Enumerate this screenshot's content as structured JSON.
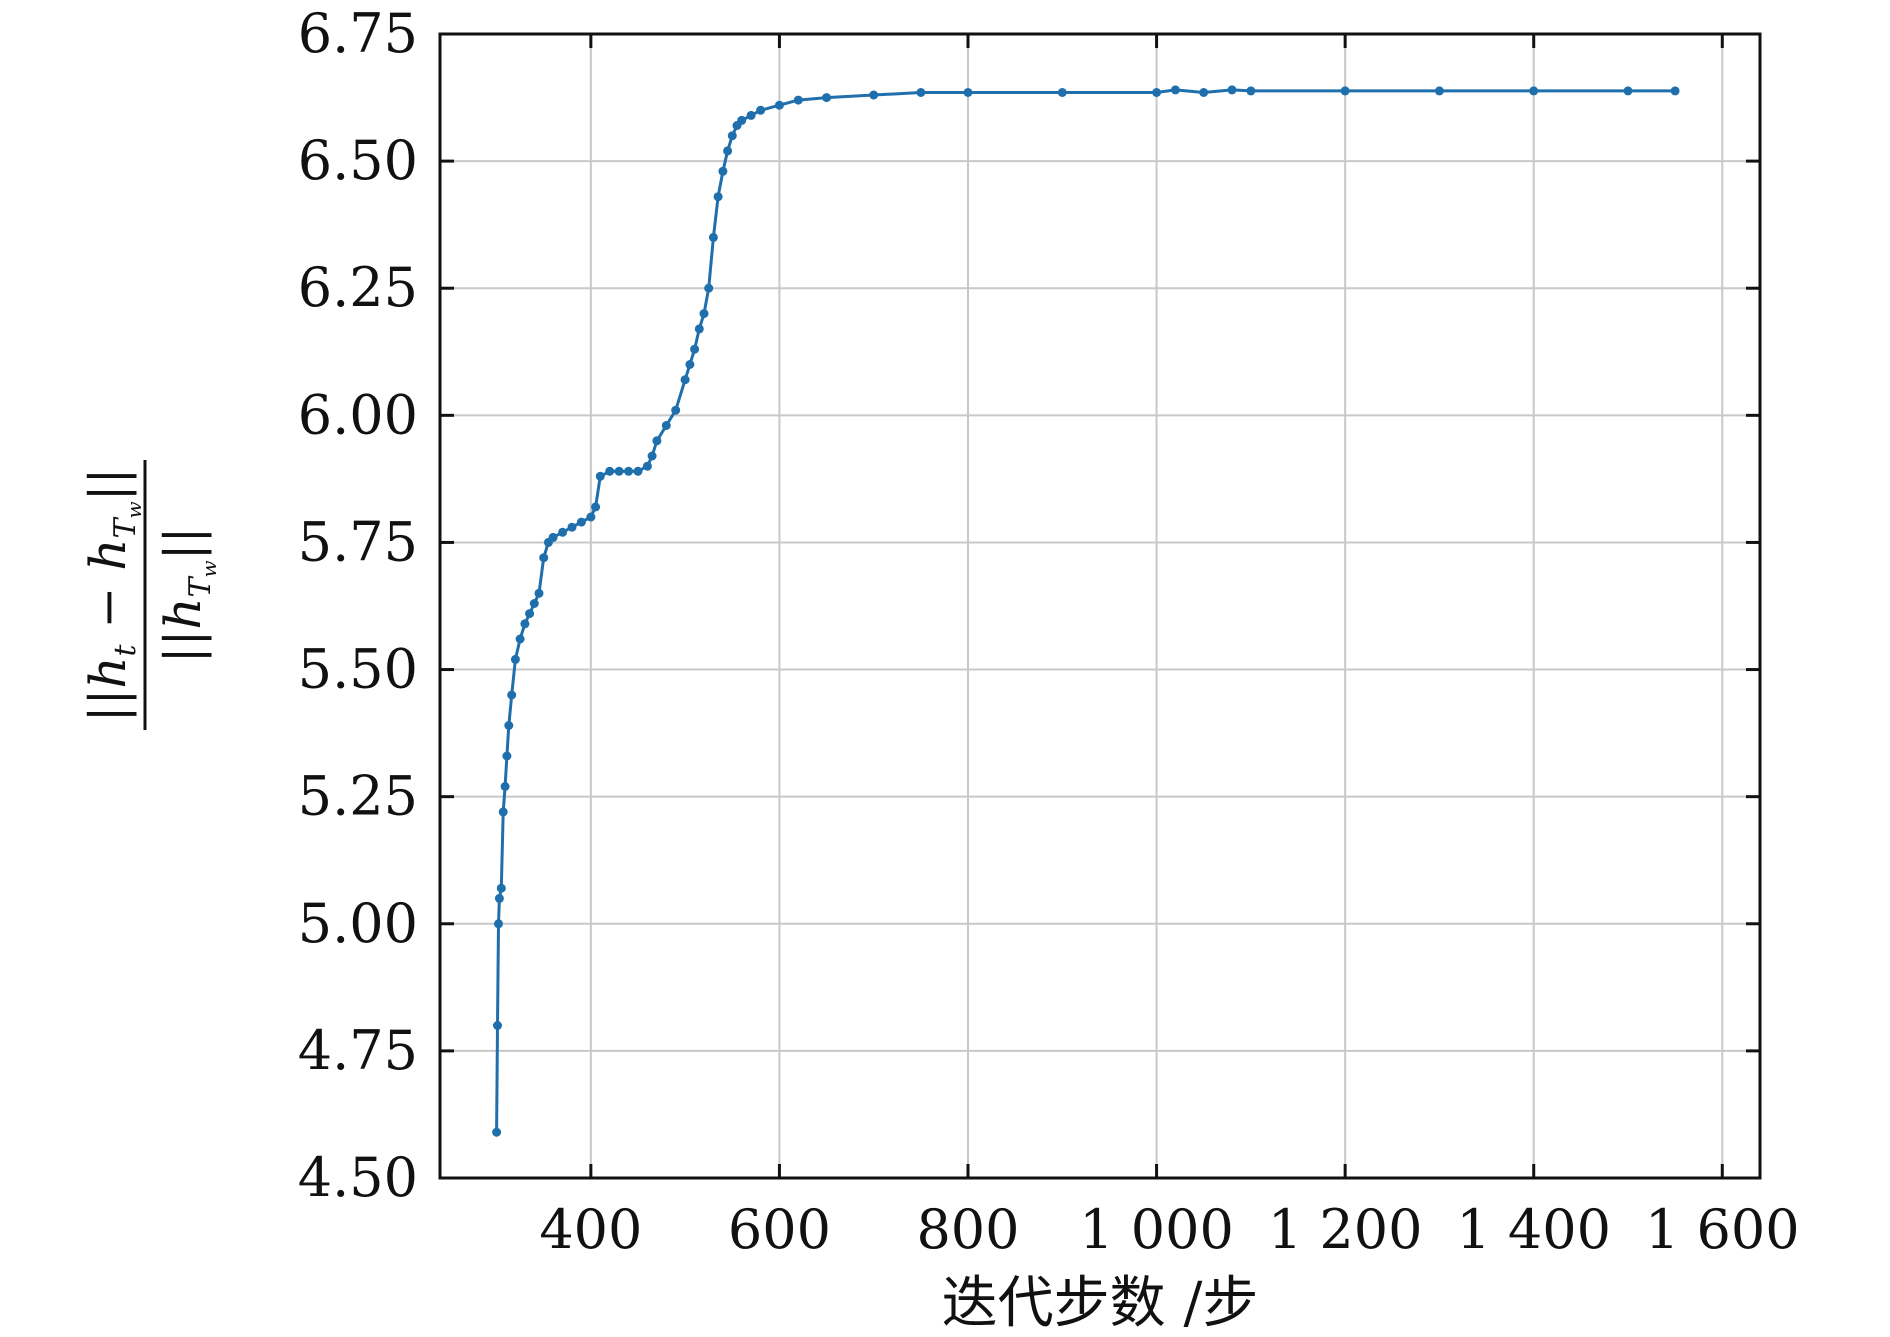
{
  "chart_data": {
    "type": "line",
    "title": "",
    "xlabel": "迭代步数 /步",
    "ylabel": {
      "numerator": "||h_t − h_{T_w}||",
      "denominator": "||h_{T_w}||"
    },
    "xlim": [
      240,
      1640
    ],
    "ylim": [
      4.5,
      6.75
    ],
    "xticks": [
      400,
      600,
      800,
      1000,
      1200,
      1400,
      1600
    ],
    "xtick_labels": [
      "400",
      "600",
      "800",
      "1 000",
      "1 200",
      "1 400",
      "1 600"
    ],
    "yticks": [
      4.5,
      4.75,
      5.0,
      5.25,
      5.5,
      5.75,
      6.0,
      6.25,
      6.5,
      6.75
    ],
    "ytick_labels": [
      "4.50",
      "4.75",
      "5.00",
      "5.25",
      "5.50",
      "5.75",
      "6.00",
      "6.25",
      "6.50",
      "6.75"
    ],
    "grid": true,
    "legend": "none",
    "series": [
      {
        "color": "#1f6fad",
        "marker": "dot",
        "x": [
          300,
          301,
          302,
          303,
          305,
          307,
          309,
          311,
          313,
          316,
          320,
          325,
          330,
          335,
          340,
          345,
          350,
          355,
          360,
          370,
          380,
          390,
          400,
          405,
          410,
          420,
          430,
          440,
          450,
          460,
          465,
          470,
          480,
          490,
          500,
          505,
          510,
          515,
          520,
          525,
          530,
          535,
          540,
          545,
          550,
          555,
          560,
          570,
          580,
          600,
          620,
          650,
          700,
          750,
          800,
          900,
          1000,
          1020,
          1050,
          1080,
          1100,
          1200,
          1300,
          1400,
          1500,
          1550
        ],
        "y": [
          4.59,
          4.8,
          5.0,
          5.05,
          5.07,
          5.22,
          5.27,
          5.33,
          5.39,
          5.45,
          5.52,
          5.56,
          5.59,
          5.61,
          5.63,
          5.65,
          5.72,
          5.75,
          5.76,
          5.77,
          5.78,
          5.79,
          5.8,
          5.82,
          5.88,
          5.89,
          5.89,
          5.89,
          5.89,
          5.9,
          5.92,
          5.95,
          5.98,
          6.01,
          6.07,
          6.1,
          6.13,
          6.17,
          6.2,
          6.25,
          6.35,
          6.43,
          6.48,
          6.52,
          6.55,
          6.57,
          6.58,
          6.59,
          6.6,
          6.61,
          6.62,
          6.625,
          6.63,
          6.635,
          6.635,
          6.635,
          6.635,
          6.64,
          6.635,
          6.64,
          6.638,
          6.638,
          6.638,
          6.638,
          6.638,
          6.638
        ]
      }
    ]
  }
}
